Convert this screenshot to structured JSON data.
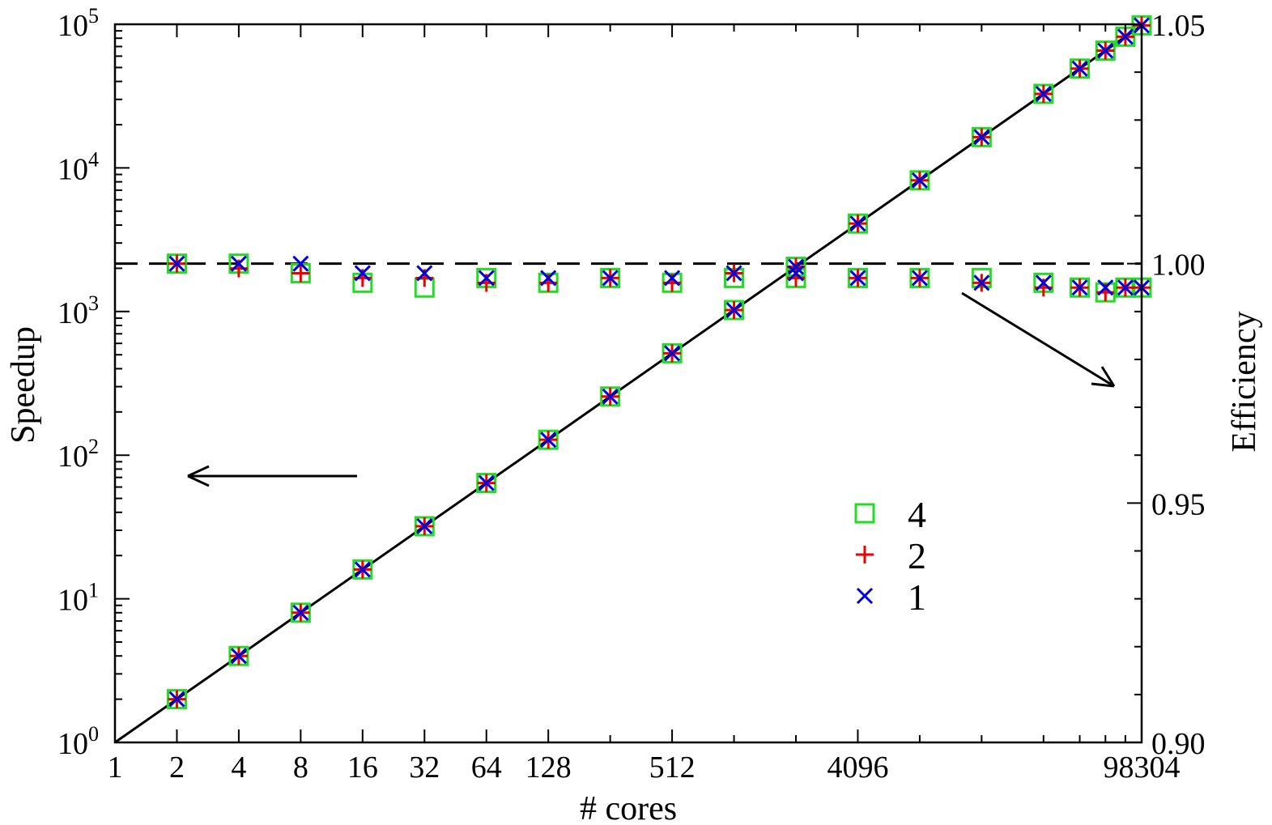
{
  "chart_data": {
    "type": "scatter",
    "xlabel": "# cores",
    "ylabel_left": "Speedup",
    "ylabel_right": "Efficiency",
    "x_scale": "log2",
    "xlim": [
      1,
      98304
    ],
    "left_y_scale": "log10",
    "left_ylim": [
      1,
      100000
    ],
    "right_ylim": [
      0.9,
      1.05
    ],
    "x_tick_labels": [
      {
        "value": 1,
        "label": "1"
      },
      {
        "value": 2,
        "label": "2"
      },
      {
        "value": 4,
        "label": "4"
      },
      {
        "value": 8,
        "label": "8"
      },
      {
        "value": 16,
        "label": "16"
      },
      {
        "value": 32,
        "label": "32"
      },
      {
        "value": 64,
        "label": "64"
      },
      {
        "value": 128,
        "label": "128"
      },
      {
        "value": 512,
        "label": "512"
      },
      {
        "value": 4096,
        "label": "4096"
      },
      {
        "value": 98304,
        "label": "98304"
      }
    ],
    "x_minor_ticks": [
      256,
      1024,
      2048,
      8192,
      16384,
      32768,
      49152,
      65536,
      81920
    ],
    "left_y_tick_labels": [
      {
        "value": 1,
        "base": "10",
        "exp": "0"
      },
      {
        "value": 10,
        "base": "10",
        "exp": "1"
      },
      {
        "value": 100,
        "base": "10",
        "exp": "2"
      },
      {
        "value": 1000,
        "base": "10",
        "exp": "3"
      },
      {
        "value": 10000,
        "base": "10",
        "exp": "4"
      },
      {
        "value": 100000,
        "base": "10",
        "exp": "5"
      }
    ],
    "right_y_tick_labels": [
      {
        "value": 0.9,
        "label": "0.90"
      },
      {
        "value": 0.95,
        "label": "0.95"
      },
      {
        "value": 1.0,
        "label": "1.00"
      },
      {
        "value": 1.05,
        "label": "1.05"
      }
    ],
    "reference_lines": {
      "ideal_speedup": {
        "axis": "left",
        "from": [
          1,
          1
        ],
        "to": [
          98304,
          98304
        ],
        "style": "solid"
      },
      "ideal_efficiency": {
        "axis": "right",
        "value": 1.0,
        "style": "dashed"
      }
    },
    "legend": {
      "placement": "center-right",
      "entries": [
        {
          "label": "4",
          "marker": "square",
          "color": "#22dd22"
        },
        {
          "label": "2",
          "marker": "plus",
          "color": "#ee0000"
        },
        {
          "label": "1",
          "marker": "x",
          "color": "#0000dd"
        }
      ]
    },
    "annotations": [
      {
        "type": "arrow",
        "meaning": "points to left axis (Speedup)"
      },
      {
        "type": "arrow",
        "meaning": "points to right axis (Efficiency)"
      }
    ],
    "x": [
      2,
      4,
      8,
      16,
      32,
      64,
      128,
      256,
      512,
      1024,
      2048,
      4096,
      8192,
      16384,
      32768,
      49152,
      65536,
      81920,
      98304
    ],
    "series": [
      {
        "name": "4",
        "marker": "square",
        "color": "#22dd22",
        "speedup": [
          2,
          4,
          8,
          16,
          32,
          64,
          128,
          256,
          512,
          1024,
          2048,
          4096,
          8192,
          16384,
          32768,
          49152,
          65536,
          81920,
          98304
        ],
        "efficiency": [
          1.0,
          1.0,
          0.998,
          0.996,
          0.995,
          0.997,
          0.996,
          0.997,
          0.996,
          0.997,
          0.997,
          0.997,
          0.997,
          0.997,
          0.996,
          0.995,
          0.994,
          0.995,
          0.995
        ]
      },
      {
        "name": "2",
        "marker": "plus",
        "color": "#ee0000",
        "speedup": [
          2,
          4,
          8,
          16,
          32,
          64,
          128,
          256,
          512,
          1024,
          2048,
          4096,
          8192,
          16384,
          32768,
          49152,
          65536,
          81920,
          98304
        ],
        "efficiency": [
          1.0,
          0.999,
          0.998,
          0.997,
          0.997,
          0.996,
          0.996,
          0.997,
          0.996,
          0.998,
          0.997,
          0.997,
          0.997,
          0.996,
          0.995,
          0.995,
          0.994,
          0.995,
          0.995
        ]
      },
      {
        "name": "1",
        "marker": "x",
        "color": "#0000dd",
        "speedup": [
          2,
          4,
          8,
          16,
          32,
          64,
          128,
          256,
          512,
          1024,
          2048,
          4096,
          8192,
          16384,
          32768,
          49152,
          65536,
          81920,
          98304
        ],
        "efficiency": [
          1.0,
          1.0,
          1.0,
          0.998,
          0.998,
          0.997,
          0.997,
          0.997,
          0.997,
          0.998,
          0.998,
          0.997,
          0.997,
          0.996,
          0.996,
          0.995,
          0.995,
          0.995,
          0.995
        ]
      }
    ]
  }
}
